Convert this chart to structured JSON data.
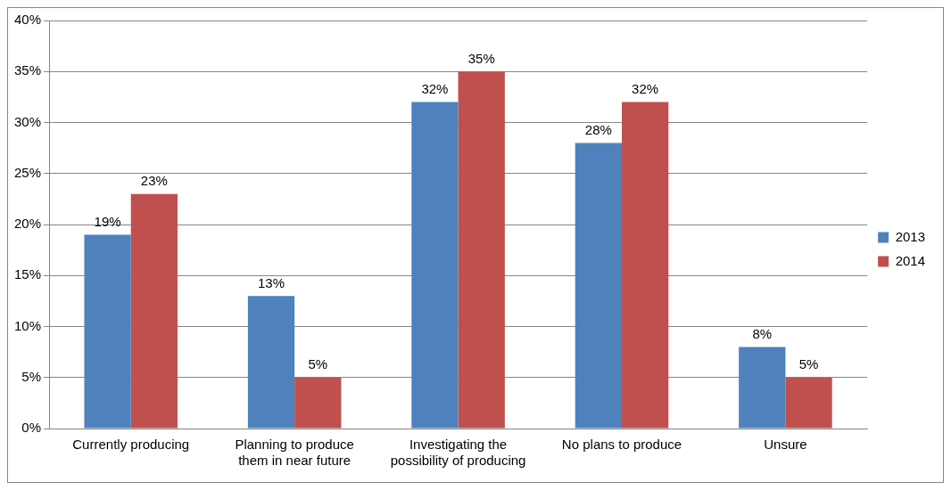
{
  "chart_data": {
    "type": "bar",
    "categories": [
      "Currently producing",
      "Planning to produce them in near future",
      "Investigating the possibility of producing",
      "No plans to produce",
      "Unsure"
    ],
    "series": [
      {
        "name": "2013",
        "color": "#4f81bd",
        "values": [
          19,
          13,
          32,
          28,
          8
        ],
        "value_labels": [
          "19%",
          "13%",
          "32%",
          "28%",
          "8%"
        ]
      },
      {
        "name": "2014",
        "color": "#c0504d",
        "values": [
          23,
          5,
          35,
          32,
          5
        ],
        "value_labels": [
          "23%",
          "5%",
          "35%",
          "32%",
          "5%"
        ]
      }
    ],
    "ylim": [
      0,
      40
    ],
    "yticks": [
      {
        "value": 0,
        "label": "0%"
      },
      {
        "value": 5,
        "label": "5%"
      },
      {
        "value": 10,
        "label": "10%"
      },
      {
        "value": 15,
        "label": "15%"
      },
      {
        "value": 20,
        "label": "20%"
      },
      {
        "value": 25,
        "label": "25%"
      },
      {
        "value": 30,
        "label": "30%"
      },
      {
        "value": 35,
        "label": "35%"
      },
      {
        "value": 40,
        "label": "40%"
      }
    ],
    "grid": "y",
    "legend": "right"
  }
}
